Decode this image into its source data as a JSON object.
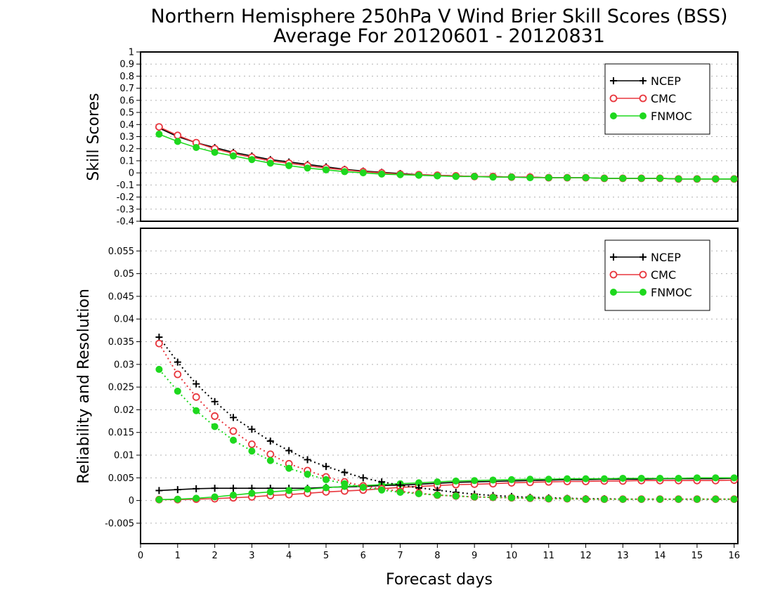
{
  "title_line1": "Northern Hemisphere 250hPa V Wind Brier Skill Scores (BSS)",
  "title_line2": "Average For 20120601 - 20120831",
  "chart_data": [
    {
      "type": "line",
      "ylabel": "Skill Scores",
      "xlim": [
        0,
        16.1
      ],
      "ylim": [
        -0.4,
        1
      ],
      "yticks": [
        "-0.4",
        "-0.3",
        "-0.2",
        "-0.1",
        "0",
        "0.1",
        "0.2",
        "0.3",
        "0.4",
        "0.5",
        "0.6",
        "0.7",
        "0.8",
        "0.9",
        "1"
      ],
      "grid": true,
      "legend_position": "top-right",
      "x": [
        0.5,
        1,
        1.5,
        2,
        2.5,
        3,
        3.5,
        4,
        4.5,
        5,
        5.5,
        6,
        6.5,
        7,
        7.5,
        8,
        8.5,
        9,
        9.5,
        10,
        10.5,
        11,
        11.5,
        12,
        12.5,
        13,
        13.5,
        14,
        14.5,
        15,
        15.5,
        16
      ],
      "series": [
        {
          "name": "NCEP",
          "color": "#000000",
          "marker": "plus",
          "style": "solid",
          "values": [
            0.37,
            0.3,
            0.25,
            0.21,
            0.17,
            0.14,
            0.11,
            0.09,
            0.07,
            0.05,
            0.03,
            0.015,
            0.005,
            -0.005,
            -0.015,
            -0.02,
            -0.025,
            -0.03,
            -0.03,
            -0.035,
            -0.035,
            -0.04,
            -0.04,
            -0.04,
            -0.045,
            -0.045,
            -0.045,
            -0.045,
            -0.05,
            -0.05,
            -0.05,
            -0.05
          ]
        },
        {
          "name": "CMC",
          "color": "#e8363d",
          "marker": "open-circle",
          "style": "solid",
          "values": [
            0.38,
            0.31,
            0.25,
            0.2,
            0.16,
            0.13,
            0.1,
            0.08,
            0.06,
            0.04,
            0.025,
            0.01,
            0.0,
            -0.01,
            -0.015,
            -0.02,
            -0.025,
            -0.03,
            -0.03,
            -0.035,
            -0.035,
            -0.04,
            -0.04,
            -0.04,
            -0.045,
            -0.045,
            -0.045,
            -0.045,
            -0.05,
            -0.05,
            -0.05,
            -0.05
          ]
        },
        {
          "name": "FNMOC",
          "color": "#1ed81e",
          "marker": "filled-circle",
          "style": "solid",
          "values": [
            0.32,
            0.26,
            0.21,
            0.17,
            0.14,
            0.11,
            0.08,
            0.06,
            0.04,
            0.025,
            0.01,
            0.0,
            -0.01,
            -0.015,
            -0.02,
            -0.025,
            -0.03,
            -0.03,
            -0.035,
            -0.035,
            -0.04,
            -0.04,
            -0.04,
            -0.04,
            -0.045,
            -0.045,
            -0.045,
            -0.045,
            -0.05,
            -0.05,
            -0.05,
            -0.05
          ]
        }
      ]
    },
    {
      "type": "line",
      "xlabel": "Forecast days",
      "ylabel": "Reliability and Resolution",
      "xlim": [
        0,
        16.1
      ],
      "ylim": [
        -0.0095,
        0.06
      ],
      "xticks": [
        "0",
        "1",
        "2",
        "3",
        "4",
        "5",
        "6",
        "7",
        "8",
        "9",
        "10",
        "11",
        "12",
        "13",
        "14",
        "15",
        "16"
      ],
      "yticks": [
        "-0.005",
        "0",
        "0.005",
        "0.01",
        "0.015",
        "0.02",
        "0.025",
        "0.03",
        "0.035",
        "0.04",
        "0.045",
        "0.05",
        "0.055"
      ],
      "grid": true,
      "legend_position": "top-right",
      "x": [
        0.5,
        1,
        1.5,
        2,
        2.5,
        3,
        3.5,
        4,
        4.5,
        5,
        5.5,
        6,
        6.5,
        7,
        7.5,
        8,
        8.5,
        9,
        9.5,
        10,
        10.5,
        11,
        11.5,
        12,
        12.5,
        13,
        13.5,
        14,
        14.5,
        15,
        15.5,
        16
      ],
      "series": [
        {
          "name": "NCEP",
          "color": "#000000",
          "marker": "plus",
          "style": "solid",
          "values": [
            0.0022,
            0.0024,
            0.0026,
            0.0027,
            0.0027,
            0.0027,
            0.0027,
            0.0027,
            0.0027,
            0.0029,
            0.003,
            0.0031,
            0.0033,
            0.0034,
            0.0036,
            0.0038,
            0.004,
            0.0041,
            0.0042,
            0.0043,
            0.0044,
            0.0045,
            0.0046,
            0.0046,
            0.0047,
            0.0047,
            0.0047,
            0.0048,
            0.0048,
            0.0048,
            0.0048,
            0.0049
          ]
        },
        {
          "name": "CMC",
          "color": "#e8363d",
          "marker": "open-circle",
          "style": "solid",
          "values": [
            0.0002,
            0.0002,
            0.0003,
            0.0004,
            0.0006,
            0.0008,
            0.0011,
            0.0013,
            0.0016,
            0.0019,
            0.0021,
            0.0023,
            0.0026,
            0.0029,
            0.0031,
            0.0033,
            0.0035,
            0.0036,
            0.0037,
            0.0039,
            0.004,
            0.0041,
            0.0042,
            0.0042,
            0.0043,
            0.0043,
            0.0044,
            0.0044,
            0.0044,
            0.0044,
            0.0044,
            0.0045
          ]
        },
        {
          "name": "FNMOC",
          "color": "#1ed81e",
          "marker": "filled-circle",
          "style": "solid",
          "values": [
            0.0002,
            0.0003,
            0.0005,
            0.0008,
            0.0012,
            0.0016,
            0.0019,
            0.0022,
            0.0025,
            0.0028,
            0.0031,
            0.0033,
            0.0035,
            0.0037,
            0.0039,
            0.0041,
            0.0043,
            0.0044,
            0.0045,
            0.0046,
            0.0047,
            0.0047,
            0.0048,
            0.0048,
            0.0048,
            0.0049,
            0.0049,
            0.0049,
            0.0049,
            0.005,
            0.005,
            0.005
          ]
        },
        {
          "name": "NCEP",
          "color": "#000000",
          "marker": "plus",
          "style": "dotted",
          "values": [
            0.036,
            0.0305,
            0.0257,
            0.0218,
            0.0183,
            0.0157,
            0.0131,
            0.011,
            0.009,
            0.0075,
            0.0062,
            0.005,
            0.0041,
            0.0034,
            0.0028,
            0.0023,
            0.0018,
            0.0014,
            0.0011,
            0.0009,
            0.0007,
            0.0006,
            0.0005,
            0.0004,
            0.0004,
            0.0003,
            0.0003,
            0.0003,
            0.0003,
            0.0003,
            0.0003,
            0.0003
          ]
        },
        {
          "name": "CMC",
          "color": "#e8363d",
          "marker": "open-circle",
          "style": "dotted",
          "values": [
            0.0346,
            0.0278,
            0.0228,
            0.0186,
            0.0153,
            0.0124,
            0.0102,
            0.0081,
            0.0066,
            0.0052,
            0.0041,
            0.0032,
            0.0026,
            0.002,
            0.0016,
            0.0012,
            0.001,
            0.0008,
            0.0007,
            0.0006,
            0.0005,
            0.0004,
            0.0004,
            0.0003,
            0.0003,
            0.0003,
            0.0003,
            0.0003,
            0.0003,
            0.0003,
            0.0003,
            0.0003
          ]
        },
        {
          "name": "FNMOC",
          "color": "#1ed81e",
          "marker": "filled-circle",
          "style": "dotted",
          "values": [
            0.0289,
            0.0241,
            0.0198,
            0.0163,
            0.0133,
            0.0109,
            0.0088,
            0.0071,
            0.0058,
            0.0046,
            0.0037,
            0.0029,
            0.0023,
            0.0018,
            0.0015,
            0.0012,
            0.001,
            0.0008,
            0.0007,
            0.0006,
            0.0005,
            0.0004,
            0.0004,
            0.0003,
            0.0003,
            0.0003,
            0.0003,
            0.0003,
            0.0003,
            0.0003,
            0.0003,
            0.0003
          ]
        }
      ]
    }
  ]
}
